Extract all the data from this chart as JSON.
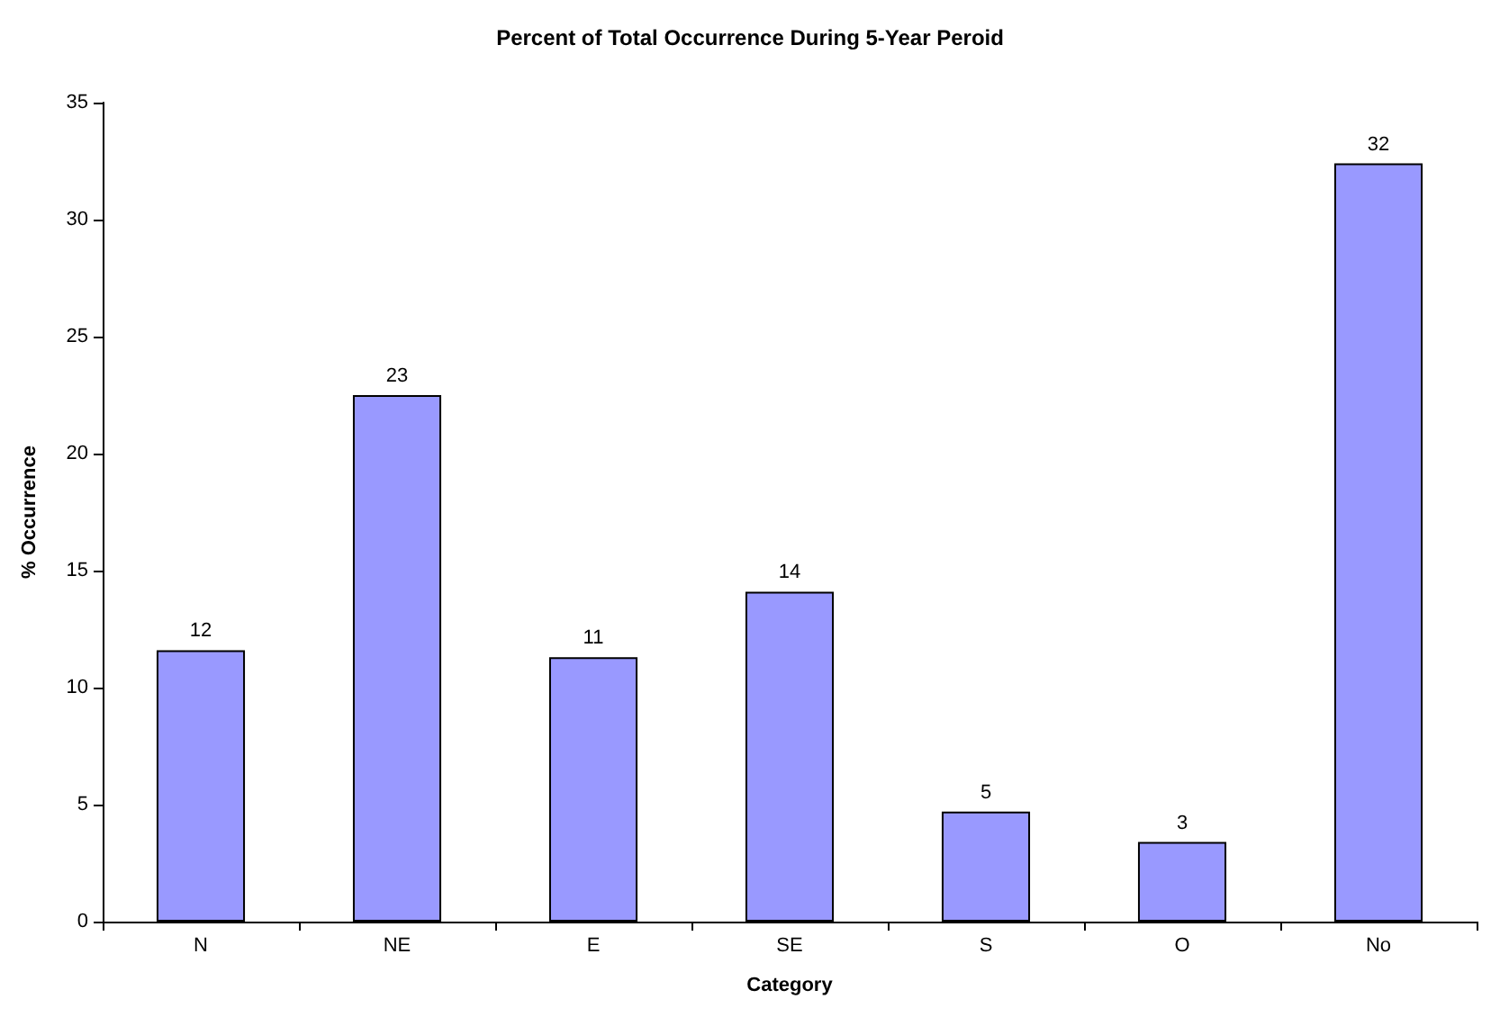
{
  "chart_data": {
    "type": "bar",
    "title": "Percent of Total Occurrence During 5-Year Peroid",
    "xlabel": "Category",
    "ylabel": "% Occurrence",
    "categories": [
      "N",
      "NE",
      "E",
      "SE",
      "S",
      "O",
      "No"
    ],
    "values": [
      11.6,
      22.5,
      11.3,
      14.1,
      4.7,
      3.4,
      32.4
    ],
    "value_labels": [
      "12",
      "23",
      "11",
      "14",
      "5",
      "3",
      "32"
    ],
    "color": "#9999ff",
    "ylim": [
      0,
      35
    ],
    "yticks": [
      0,
      5,
      10,
      15,
      20,
      25,
      30,
      35
    ],
    "grid": false
  }
}
